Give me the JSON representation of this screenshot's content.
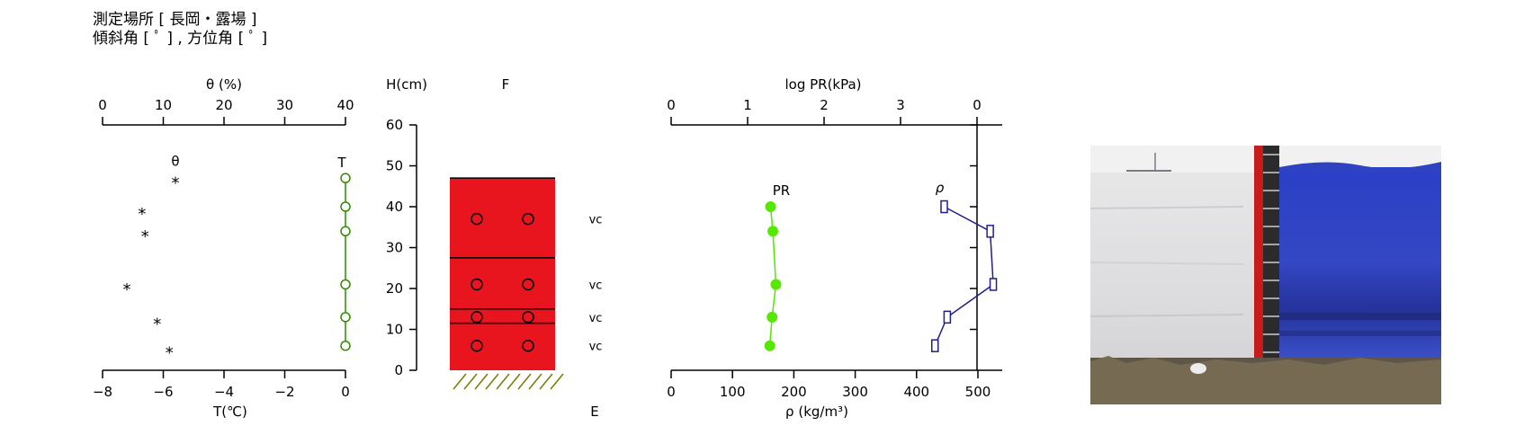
{
  "header": {
    "line1": "測定場所 [ 長岡・露場 ]",
    "line2": "傾斜角 [ ﾟ ] , 方位角 [ ﾟ ]"
  },
  "colors": {
    "theta": "#000000",
    "temperature": "#2e8b00",
    "layer_fill": "#e8141e",
    "pr": "#55e800",
    "density": "#1f1f8c"
  },
  "chart_data": [
    {
      "type": "scatter",
      "panel": "left",
      "top_axis": {
        "label": "θ (%)",
        "ticks": [
          "0",
          "10",
          "20",
          "30",
          "40"
        ],
        "range": [
          0,
          40
        ]
      },
      "bottom_axis": {
        "label": "T(℃)",
        "ticks": [
          "−8",
          "−6",
          "−4",
          "−2",
          "0"
        ],
        "range": [
          -8,
          0
        ]
      },
      "y_axis": {
        "label": "H(cm)",
        "ticks": [
          "0",
          "10",
          "20",
          "30",
          "40",
          "50",
          "60"
        ],
        "range": [
          0,
          60
        ]
      },
      "series": [
        {
          "name": "θ",
          "marker": "*",
          "x_axis": "top",
          "points": [
            {
              "x": 12,
              "h": 46
            },
            {
              "x": 6.5,
              "h": 38.5
            },
            {
              "x": 7,
              "h": 33
            },
            {
              "x": 4,
              "h": 20
            },
            {
              "x": 9,
              "h": 11.5
            },
            {
              "x": 11,
              "h": 4.5
            }
          ]
        },
        {
          "name": "T",
          "marker": "circle",
          "x_axis": "bottom",
          "points": [
            {
              "x": 0,
              "h": 47
            },
            {
              "x": 0,
              "h": 40
            },
            {
              "x": 0,
              "h": 34
            },
            {
              "x": 0,
              "h": 21
            },
            {
              "x": 0,
              "h": 13
            },
            {
              "x": 0,
              "h": 6
            }
          ]
        }
      ]
    },
    {
      "type": "table",
      "panel": "stratigraphy",
      "top_label": "F",
      "bottom_label": "E",
      "snow_top_h": 47,
      "boundaries_h": [
        27.5,
        15,
        11.5
      ],
      "circle_h": [
        37,
        21,
        13,
        6
      ],
      "grain_labels": [
        {
          "h": 37,
          "text": "vc"
        },
        {
          "h": 21,
          "text": "vc"
        },
        {
          "h": 13,
          "text": "vc"
        },
        {
          "h": 6,
          "text": "vc"
        }
      ]
    },
    {
      "type": "line",
      "panel": "right",
      "top_axis": {
        "label": "log PR(kPa)",
        "ticks": [
          "0",
          "1",
          "2",
          "3",
          "0"
        ],
        "range": [
          0,
          4
        ]
      },
      "bottom_axis": {
        "label": "ρ (kg/m³)",
        "ticks": [
          "0",
          "100",
          "200",
          "300",
          "400",
          "500"
        ],
        "range": [
          0,
          550
        ]
      },
      "y_range": [
        0,
        60
      ],
      "series": [
        {
          "name": "PR",
          "marker": "filled-circle",
          "x_axis": "top",
          "points": [
            {
              "x": 1.3,
              "h": 40
            },
            {
              "x": 1.33,
              "h": 34
            },
            {
              "x": 1.37,
              "h": 21
            },
            {
              "x": 1.32,
              "h": 13
            },
            {
              "x": 1.29,
              "h": 6
            }
          ]
        },
        {
          "name": "ρ",
          "marker": "square",
          "x_axis": "bottom",
          "points": [
            {
              "x": 445,
              "h": 40
            },
            {
              "x": 520,
              "h": 34
            },
            {
              "x": 525,
              "h": 21
            },
            {
              "x": 450,
              "h": 13
            },
            {
              "x": 430,
              "h": 6
            }
          ]
        }
      ]
    }
  ]
}
